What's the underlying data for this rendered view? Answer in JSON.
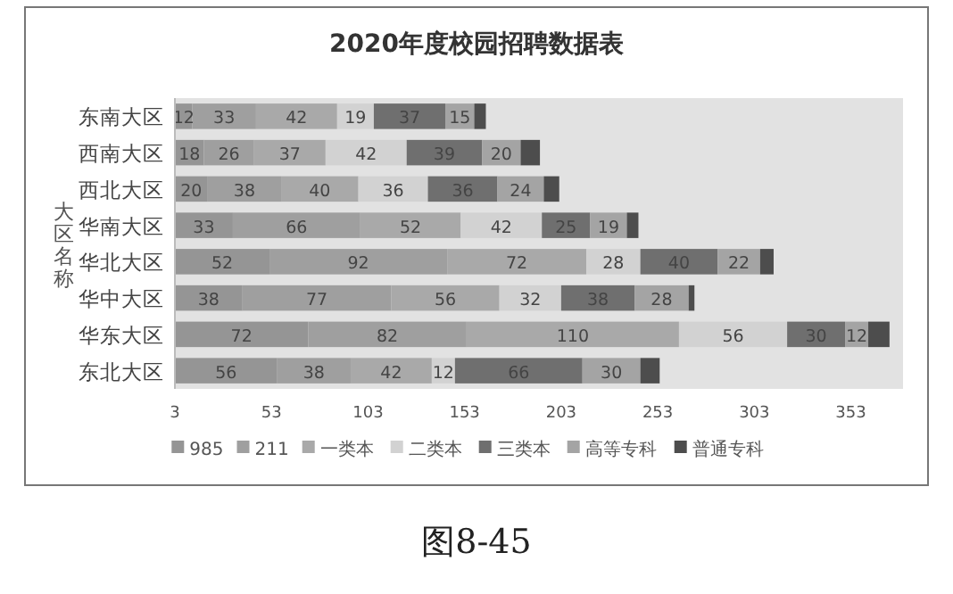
{
  "chart_data": {
    "type": "bar",
    "orientation": "horizontal",
    "stacked": true,
    "title": "2020年度校园招聘数据表",
    "ylabel": "大区名称",
    "categories": [
      "东南大区",
      "西南大区",
      "西北大区",
      "华南大区",
      "华北大区",
      "华中大区",
      "华东大区",
      "东北大区"
    ],
    "series": [
      {
        "name": "985",
        "color": "#959595",
        "values": [
          12,
          18,
          20,
          33,
          52,
          38,
          72,
          56
        ],
        "value_labels": [
          "12",
          "18",
          "20",
          "33",
          "52",
          "38",
          "72",
          "56"
        ]
      },
      {
        "name": "211",
        "color": "#9f9f9f",
        "values": [
          33,
          26,
          38,
          66,
          92,
          77,
          82,
          38
        ],
        "value_labels": [
          "33",
          "26",
          "38",
          "66",
          "92",
          "77",
          "82",
          "38"
        ]
      },
      {
        "name": "一类本",
        "color": "#a9a9a9",
        "values": [
          42,
          37,
          40,
          52,
          72,
          56,
          110,
          42
        ],
        "value_labels": [
          "42",
          "37",
          "40",
          "52",
          "72",
          "56",
          "110",
          "42"
        ]
      },
      {
        "name": "二类本",
        "color": "#d2d2d2",
        "values": [
          19,
          42,
          36,
          42,
          28,
          32,
          56,
          12
        ],
        "value_labels": [
          "19",
          "42",
          "36",
          "42",
          "28",
          "32",
          "56",
          "12"
        ]
      },
      {
        "name": "三类本",
        "color": "#6f6f6f",
        "values": [
          37,
          39,
          36,
          25,
          40,
          38,
          30,
          66
        ],
        "value_labels": [
          "37",
          "39",
          "36",
          "25",
          "40",
          "38",
          "30",
          "66"
        ]
      },
      {
        "name": "高等专科",
        "color": "#a4a4a4",
        "values": [
          15,
          20,
          24,
          19,
          22,
          28,
          12,
          30
        ],
        "value_labels": [
          "15",
          "20",
          "24",
          "19",
          "22",
          "28",
          "12",
          "30"
        ]
      },
      {
        "name": "普通专科",
        "color": "#4d4d4d",
        "values": [
          6,
          10,
          8,
          6,
          7,
          3,
          11,
          10
        ]
      }
    ],
    "xlim": [
      3,
      380
    ],
    "xticks": [
      3,
      53,
      103,
      153,
      203,
      253,
      303,
      353
    ],
    "legend": "bottom",
    "annotations": [
      "图8-45"
    ]
  }
}
